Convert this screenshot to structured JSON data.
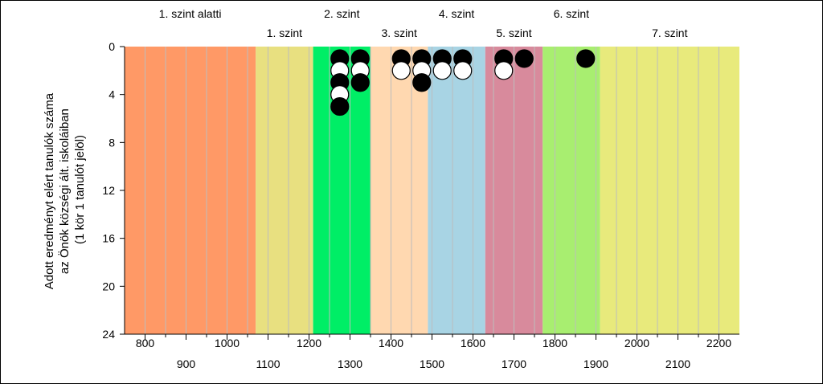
{
  "chart_data": {
    "type": "scatter",
    "title": "",
    "ylabel_lines": [
      "Adott eredményt elért tanulók száma",
      "az Önök községi ált. iskoláiban",
      "(1 kör 1 tanulót jelöl)"
    ],
    "xlim": [
      750,
      2250
    ],
    "ylim": [
      0,
      24
    ],
    "y_inverted": true,
    "y_ticks": [
      0,
      4,
      8,
      12,
      16,
      20,
      24
    ],
    "x_ticks_upper": [
      800,
      1000,
      1200,
      1400,
      1600,
      1800,
      2000,
      2200
    ],
    "x_ticks_lower": [
      900,
      1100,
      1300,
      1500,
      1700,
      1900,
      2100
    ],
    "bands": [
      {
        "from": 750,
        "to": 1070,
        "color": "#FF9966",
        "label": "1. szint alatti",
        "label_row": "top"
      },
      {
        "from": 1070,
        "to": 1210,
        "color": "#E8E080",
        "label": "1. szint",
        "label_row": "bottom"
      },
      {
        "from": 1210,
        "to": 1350,
        "color": "#00EE66",
        "label": "2. szint",
        "label_row": "top"
      },
      {
        "from": 1350,
        "to": 1490,
        "color": "#FFD8B0",
        "label": "3. szint",
        "label_row": "bottom"
      },
      {
        "from": 1490,
        "to": 1630,
        "color": "#A8D4E4",
        "label": "4. szint",
        "label_row": "top"
      },
      {
        "from": 1630,
        "to": 1770,
        "color": "#D88A9C",
        "label": "5. szint",
        "label_row": "bottom"
      },
      {
        "from": 1770,
        "to": 1910,
        "color": "#A8EE70",
        "label": "6. szint",
        "label_row": "top"
      },
      {
        "from": 1910,
        "to": 2250,
        "color": "#E8EA7C",
        "label": "7. szint",
        "label_row": "bottom"
      }
    ],
    "grid_x_every": 50,
    "grid_color": "#BDBDBD",
    "marker_colors": {
      "black": "#000000",
      "white": "#FFFFFF"
    },
    "points": [
      {
        "x": 1275,
        "y": 1,
        "fill": "black"
      },
      {
        "x": 1275,
        "y": 2,
        "fill": "white"
      },
      {
        "x": 1275,
        "y": 3,
        "fill": "black"
      },
      {
        "x": 1275,
        "y": 4,
        "fill": "white"
      },
      {
        "x": 1275,
        "y": 5,
        "fill": "black"
      },
      {
        "x": 1325,
        "y": 1,
        "fill": "black"
      },
      {
        "x": 1325,
        "y": 2,
        "fill": "white"
      },
      {
        "x": 1325,
        "y": 3,
        "fill": "black"
      },
      {
        "x": 1425,
        "y": 1,
        "fill": "black"
      },
      {
        "x": 1425,
        "y": 2,
        "fill": "white"
      },
      {
        "x": 1475,
        "y": 1,
        "fill": "black"
      },
      {
        "x": 1475,
        "y": 2,
        "fill": "white"
      },
      {
        "x": 1475,
        "y": 3,
        "fill": "black"
      },
      {
        "x": 1525,
        "y": 1,
        "fill": "black"
      },
      {
        "x": 1525,
        "y": 2,
        "fill": "white"
      },
      {
        "x": 1575,
        "y": 1,
        "fill": "black"
      },
      {
        "x": 1575,
        "y": 2,
        "fill": "white"
      },
      {
        "x": 1675,
        "y": 1,
        "fill": "black"
      },
      {
        "x": 1675,
        "y": 2,
        "fill": "white"
      },
      {
        "x": 1725,
        "y": 1,
        "fill": "black"
      },
      {
        "x": 1875,
        "y": 1,
        "fill": "black"
      }
    ]
  }
}
